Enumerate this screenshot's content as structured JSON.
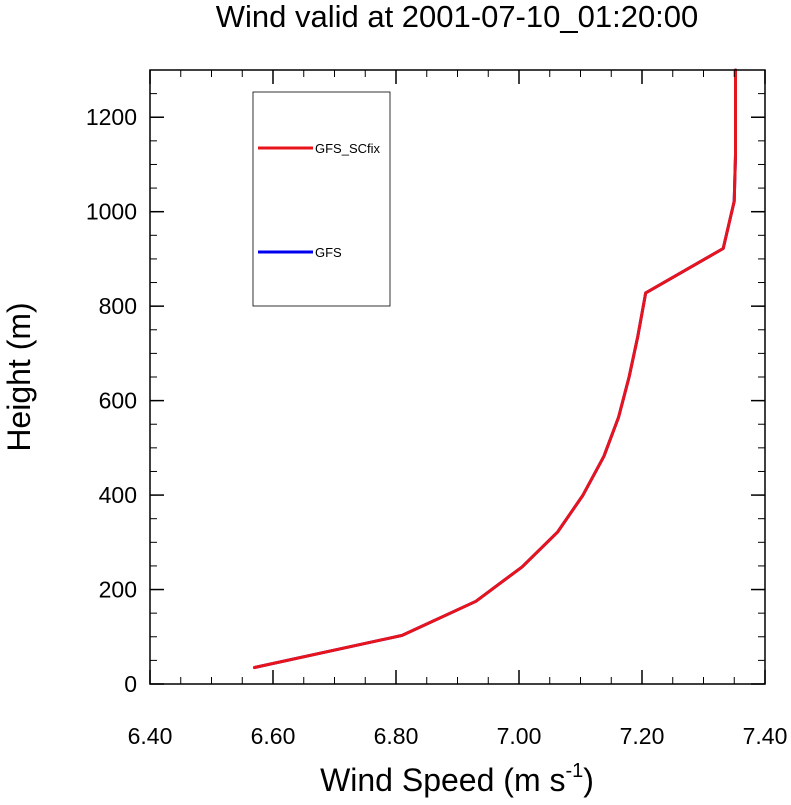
{
  "chart_data": {
    "type": "line",
    "title": "Wind valid at 2001-07-10_01:20:00",
    "xlabel": "Wind Speed (m s",
    "xlabel_superscript": "-1",
    "xlabel_suffix": ")",
    "ylabel": "Height (m)",
    "xlim": [
      6.4,
      7.4
    ],
    "ylim": [
      0,
      1300
    ],
    "xticks": [
      6.4,
      6.6,
      6.8,
      7.0,
      7.2,
      7.4
    ],
    "xtick_labels": [
      "6.40",
      "6.60",
      "6.80",
      "7.00",
      "7.20",
      "7.40"
    ],
    "yticks": [
      0,
      200,
      400,
      600,
      800,
      1000,
      1200
    ],
    "ytick_labels": [
      "0",
      "200",
      "400",
      "600",
      "800",
      "1000",
      "1200"
    ],
    "grid": false,
    "legend_position": "top-left",
    "series": [
      {
        "name": "GFS",
        "color": "#0000ee",
        "x": [
          6.57,
          6.81,
          6.93,
          7.005,
          7.063,
          7.104,
          7.138,
          7.162,
          7.179,
          7.193,
          7.206,
          7.332,
          7.35,
          7.352,
          7.352,
          7.352
        ],
        "y": [
          35,
          103,
          175,
          248,
          322,
          400,
          482,
          565,
          650,
          735,
          828,
          922,
          1022,
          1120,
          1220,
          1300
        ]
      },
      {
        "name": "GFS_SCfix",
        "color": "#e8141b",
        "x": [
          6.57,
          6.81,
          6.93,
          7.005,
          7.063,
          7.104,
          7.138,
          7.162,
          7.179,
          7.193,
          7.206,
          7.332,
          7.35,
          7.352,
          7.352,
          7.352
        ],
        "y": [
          35,
          103,
          175,
          248,
          322,
          400,
          482,
          565,
          650,
          735,
          828,
          922,
          1022,
          1120,
          1220,
          1300
        ]
      }
    ],
    "legend_entries": [
      "GFS_SCfix",
      "GFS"
    ]
  }
}
